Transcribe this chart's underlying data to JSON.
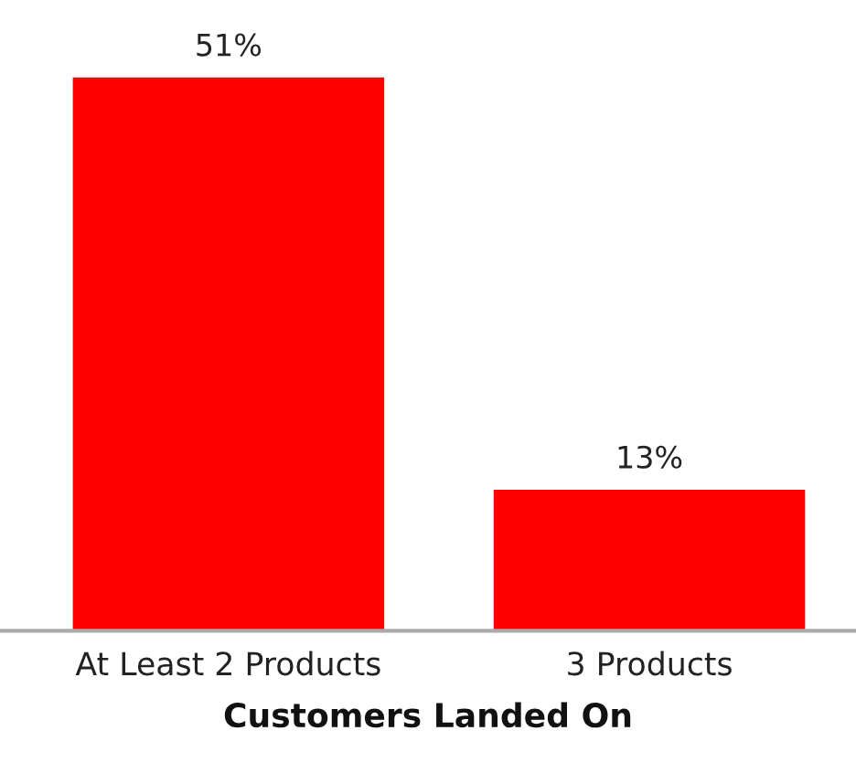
{
  "chart_data": {
    "type": "bar",
    "xlabel": "Customers Landed On",
    "categories": [
      "At Least 2 Products",
      "3 Products"
    ],
    "values": [
      51,
      13
    ],
    "value_labels": [
      "51%",
      "13%"
    ],
    "color": "#ff0000",
    "grid": false,
    "legend": false
  }
}
